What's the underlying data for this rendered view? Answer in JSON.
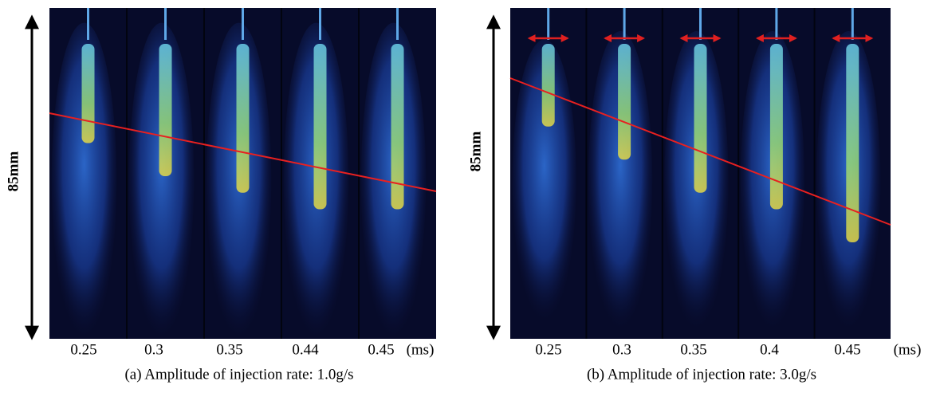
{
  "panels": [
    {
      "length_label": "85mm",
      "times": [
        "0.25",
        "0.3",
        "0.35",
        "0.44",
        "0.45"
      ],
      "unit": "(ms)",
      "caption": "(a) Amplitude of injection rate: 1.0g/s"
    },
    {
      "length_label": "85mm",
      "times": [
        "0.25",
        "0.3",
        "0.35",
        "0.4",
        "0.45"
      ],
      "unit": "(ms)",
      "caption": "(b) Amplitude of injection rate: 3.0g/s"
    }
  ]
}
